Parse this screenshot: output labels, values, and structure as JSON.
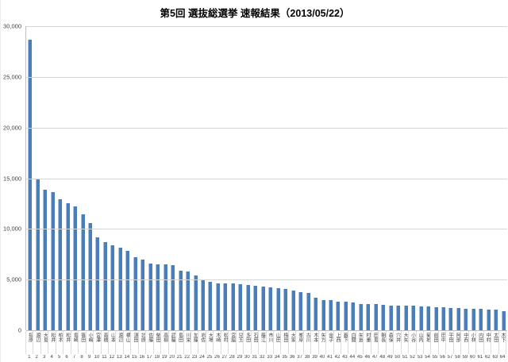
{
  "title": "第5回 選抜総選挙 速報結果（2013/05/22）",
  "chart_data": {
    "type": "bar",
    "title": "第5回 選抜総選挙 速報結果（2013/05/22）",
    "xlabel": "",
    "ylabel": "",
    "ylim": [
      0,
      30000
    ],
    "grid": true,
    "legend": "none",
    "ytick_labels": [
      "30,000",
      "25,000",
      "20,000",
      "15,000",
      "10,000",
      "5,000",
      "0"
    ],
    "bar_color": "#4a7ebb",
    "bar_edge_color": "#a9c2e1",
    "gridline_color": "#d6d6d6",
    "categories": [
      "指原",
      "渡辺",
      "大島",
      "松井",
      "柏木",
      "松井",
      "島崎",
      "篠田",
      "小嶋",
      "宮澤",
      "高橋",
      "山本",
      "渡辺",
      "横山",
      "須田",
      "北原",
      "佐藤",
      "柴田",
      "高柳",
      "武藤",
      "島田",
      "川栄",
      "加藤",
      "岩佐",
      "大場",
      "木崎",
      "松村",
      "宮脇",
      "兒玉",
      "多田",
      "石田",
      "藤江",
      "市川",
      "山田",
      "梅田",
      "大家",
      "峯岸",
      "古川",
      "木本",
      "矢方",
      "金子",
      "上西",
      "薮下",
      "白間",
      "矢倉",
      "村重",
      "田島",
      "朝長",
      "森保",
      "穴井",
      "大矢",
      "小谷",
      "山内",
      "菊地",
      "前田",
      "田中",
      "平田",
      "阿部",
      "中西",
      "小林",
      "内田",
      "中村",
      "太田",
      "木下"
    ],
    "ranks": [
      "1",
      "2",
      "3",
      "4",
      "5",
      "6",
      "7",
      "8",
      "9",
      "10",
      "11",
      "12",
      "13",
      "14",
      "15",
      "16",
      "17",
      "18",
      "19",
      "20",
      "21",
      "22",
      "23",
      "24",
      "25",
      "26",
      "27",
      "28",
      "29",
      "30",
      "31",
      "32",
      "33",
      "34",
      "35",
      "36",
      "37",
      "38",
      "39",
      "40",
      "41",
      "42",
      "43",
      "44",
      "45",
      "46",
      "47",
      "48",
      "49",
      "50",
      "51",
      "52",
      "53",
      "54",
      "55",
      "56",
      "57",
      "58",
      "59",
      "60",
      "61",
      "62",
      "63",
      "64"
    ],
    "values": [
      28700,
      14900,
      13900,
      13650,
      12900,
      12500,
      12250,
      11450,
      10600,
      9150,
      8680,
      8420,
      8150,
      7840,
      7210,
      6950,
      6600,
      6520,
      6470,
      6420,
      5850,
      5820,
      5400,
      4950,
      4780,
      4660,
      4640,
      4600,
      4510,
      4430,
      4360,
      4340,
      4210,
      4190,
      4110,
      3900,
      3800,
      3720,
      3250,
      3010,
      2990,
      2850,
      2800,
      2720,
      2610,
      2590,
      2560,
      2470,
      2460,
      2450,
      2410,
      2400,
      2360,
      2350,
      2300,
      2250,
      2210,
      2190,
      2150,
      2140,
      2080,
      2050,
      2010,
      1900
    ]
  }
}
